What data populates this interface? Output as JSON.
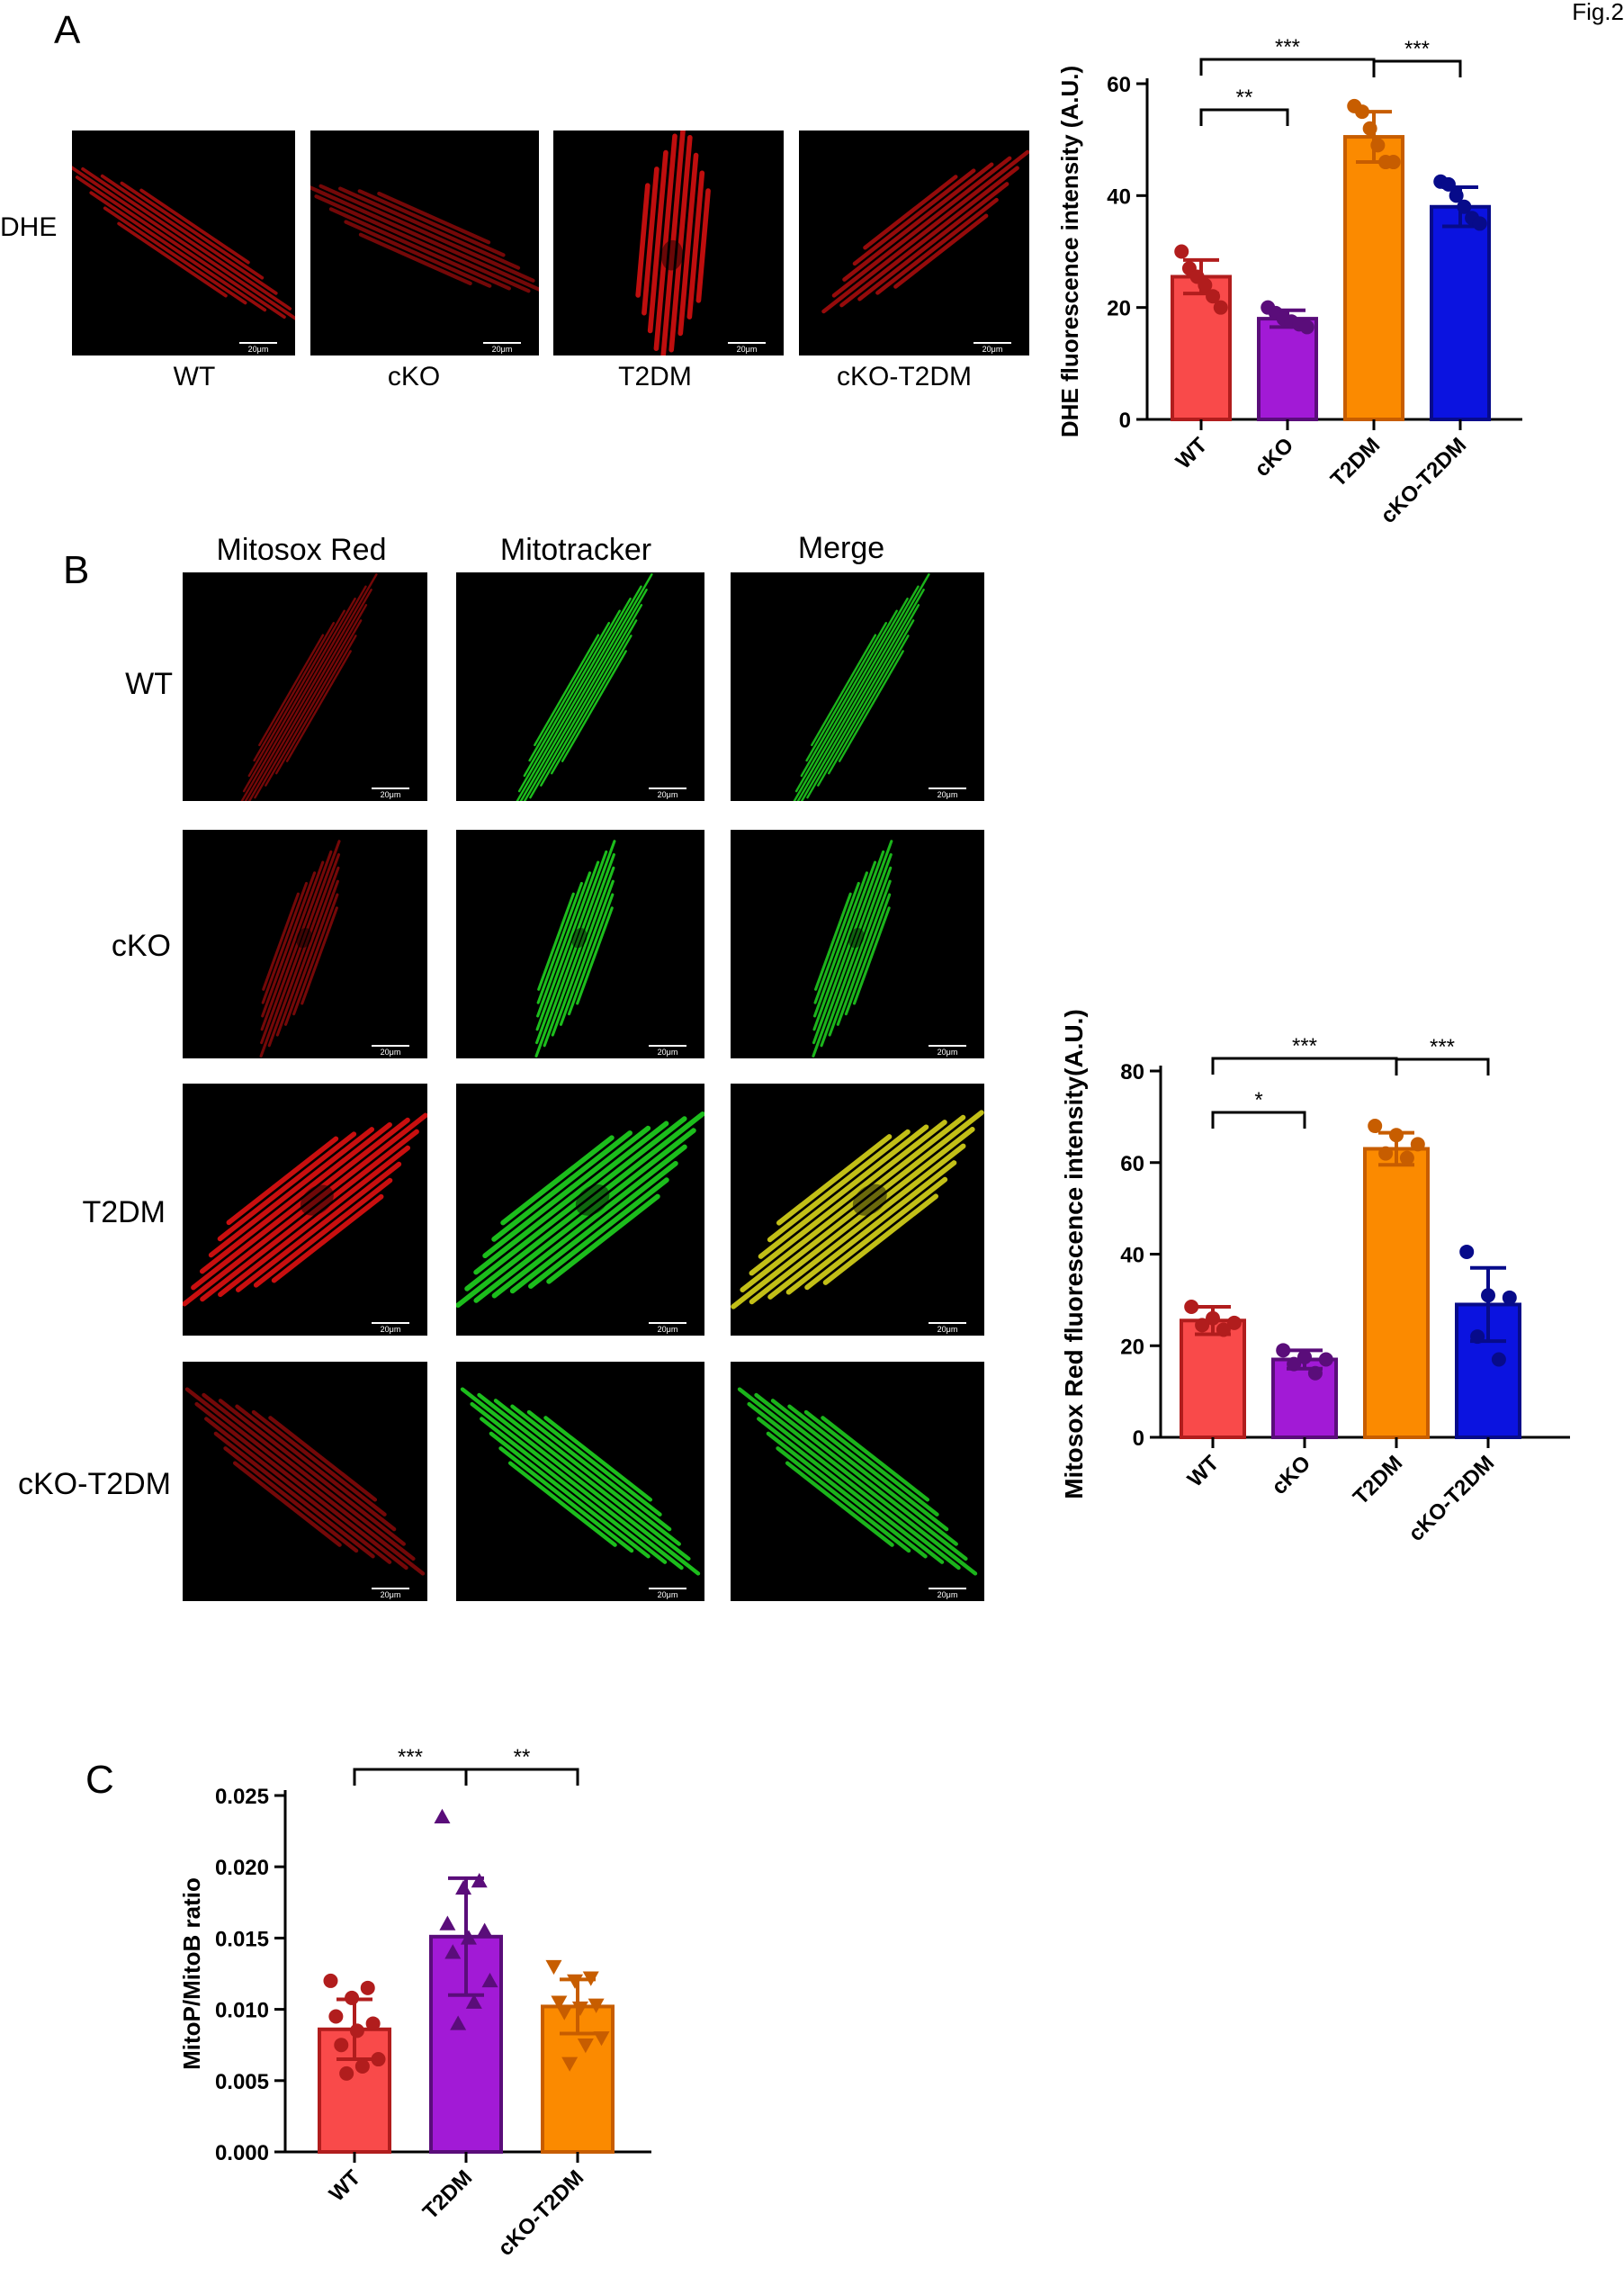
{
  "figure_label": "Fig.2",
  "panels": {
    "A": {
      "letter": "A",
      "row_label": "DHE",
      "image_labels": [
        "WT",
        "cKO",
        "T2DM",
        "cKO-T2DM"
      ],
      "scale_bar": "20μm"
    },
    "B": {
      "letter": "B",
      "column_headers": [
        "Mitosox Red",
        "Mitotracker",
        "Merge"
      ],
      "row_labels": [
        "WT",
        "cKO",
        "T2DM",
        "cKO-T2DM"
      ],
      "scale_bar": "20μm"
    },
    "C": {
      "letter": "C"
    }
  },
  "colors": {
    "wt": "#f94a4a",
    "wt_dark": "#b11d1d",
    "cko": "#a21ad6",
    "cko_dark": "#5a0d7a",
    "t2dm": "#fb8a00",
    "t2dm_dark": "#c75d00",
    "ckot2dm": "#0b13e0",
    "ckot2dm_dark": "#070b8a",
    "red_signal": "#d41010",
    "green_signal": "#1ec81e",
    "merge_signal": "#d8d41a"
  },
  "chart_data": [
    {
      "id": "dhe",
      "type": "bar",
      "ylabel": "DHE fluorescence intensity (A.U.)",
      "categories": [
        "WT",
        "cKO",
        "T2DM",
        "cKO-T2DM"
      ],
      "values": [
        25.5,
        18,
        50.5,
        38
      ],
      "errors": [
        3,
        1.5,
        4.5,
        3.5
      ],
      "points": [
        [
          30,
          27,
          25.5,
          24,
          22,
          20
        ],
        [
          20,
          19,
          18,
          17.5,
          17,
          16.5
        ],
        [
          56,
          55,
          52,
          49,
          46,
          46
        ],
        [
          42.5,
          42,
          40,
          38,
          36,
          35
        ]
      ],
      "ylim": [
        0,
        60
      ],
      "yticks": [
        0,
        20,
        40,
        60
      ],
      "significance": [
        {
          "from": 0,
          "to": 1,
          "label": "**"
        },
        {
          "from": 0,
          "to": 2,
          "label": "***"
        },
        {
          "from": 2,
          "to": 3,
          "label": "***"
        }
      ]
    },
    {
      "id": "mitosox",
      "type": "bar",
      "ylabel": "Mitosox Red fluorescence intensity(A.U.)",
      "categories": [
        "WT",
        "cKO",
        "T2DM",
        "cKO-T2DM"
      ],
      "values": [
        25.5,
        17,
        63,
        29
      ],
      "errors": [
        3,
        2,
        3.5,
        8
      ],
      "points": [
        [
          28.5,
          26,
          25,
          24.5,
          23.5
        ],
        [
          19,
          17.5,
          17,
          16,
          14
        ],
        [
          68,
          66,
          64,
          62,
          61
        ],
        [
          40.5,
          31,
          30.5,
          22,
          17
        ]
      ],
      "ylim": [
        0,
        80
      ],
      "yticks": [
        0,
        20,
        40,
        60,
        80
      ],
      "significance": [
        {
          "from": 0,
          "to": 1,
          "label": "*"
        },
        {
          "from": 0,
          "to": 2,
          "label": "***"
        },
        {
          "from": 2,
          "to": 3,
          "label": "***"
        }
      ]
    },
    {
      "id": "mito_ratio",
      "type": "bar",
      "ylabel": "MitoP/MitoB ratio",
      "categories": [
        "WT",
        "T2DM",
        "cKO-T2DM"
      ],
      "values": [
        0.0086,
        0.0151,
        0.0102
      ],
      "errors": [
        0.0021,
        0.0041,
        0.0019
      ],
      "points": [
        [
          0.012,
          0.0115,
          0.0108,
          0.0095,
          0.009,
          0.0085,
          0.0075,
          0.0065,
          0.006,
          0.0055
        ],
        [
          0.0235,
          0.019,
          0.0185,
          0.016,
          0.0155,
          0.015,
          0.014,
          0.012,
          0.0105,
          0.009
        ],
        [
          0.013,
          0.0122,
          0.012,
          0.0105,
          0.0103,
          0.0101,
          0.0098,
          0.008,
          0.0075,
          0.0062
        ]
      ],
      "markers": [
        "circle",
        "triangle",
        "triangle-down"
      ],
      "ylim": [
        0,
        0.025
      ],
      "yticks": [
        "0.000",
        "0.005",
        "0.010",
        "0.015",
        "0.020",
        "0.025"
      ],
      "significance": [
        {
          "from": 0,
          "to": 1,
          "label": "***"
        },
        {
          "from": 1,
          "to": 2,
          "label": "**"
        }
      ]
    }
  ]
}
